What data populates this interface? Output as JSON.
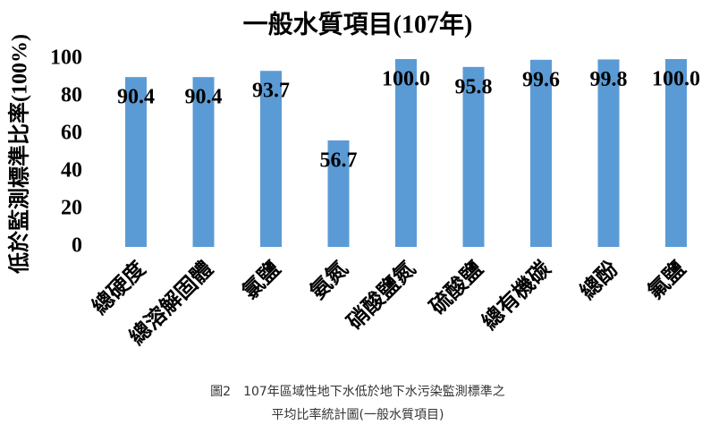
{
  "chart_data": {
    "type": "bar",
    "title": "一般水質項目(107年)",
    "y_label": "低於監測標準比率(100%)",
    "categories": [
      "總硬度",
      "總溶解固體",
      "氯鹽",
      "氨氮",
      "硝酸鹽氮",
      "硫酸鹽",
      "總有機碳",
      "總酚",
      "氟鹽"
    ],
    "values": [
      90.4,
      90.4,
      93.7,
      56.7,
      100.0,
      95.8,
      99.6,
      99.8,
      100.0
    ],
    "value_labels": [
      "90.4",
      "90.4",
      "93.7",
      "56.7",
      "100.0",
      "95.8",
      "99.6",
      "99.8",
      "100.0"
    ],
    "color": "#5b9bd5",
    "ylim": [
      0,
      100
    ],
    "yticks": [
      0,
      20,
      40,
      60,
      80,
      100
    ],
    "grid": false,
    "caption": [
      "圖2　107年區域性地下水低於地下水污染監測標準之",
      "平均比率統計圖(一般水質項目)"
    ]
  }
}
